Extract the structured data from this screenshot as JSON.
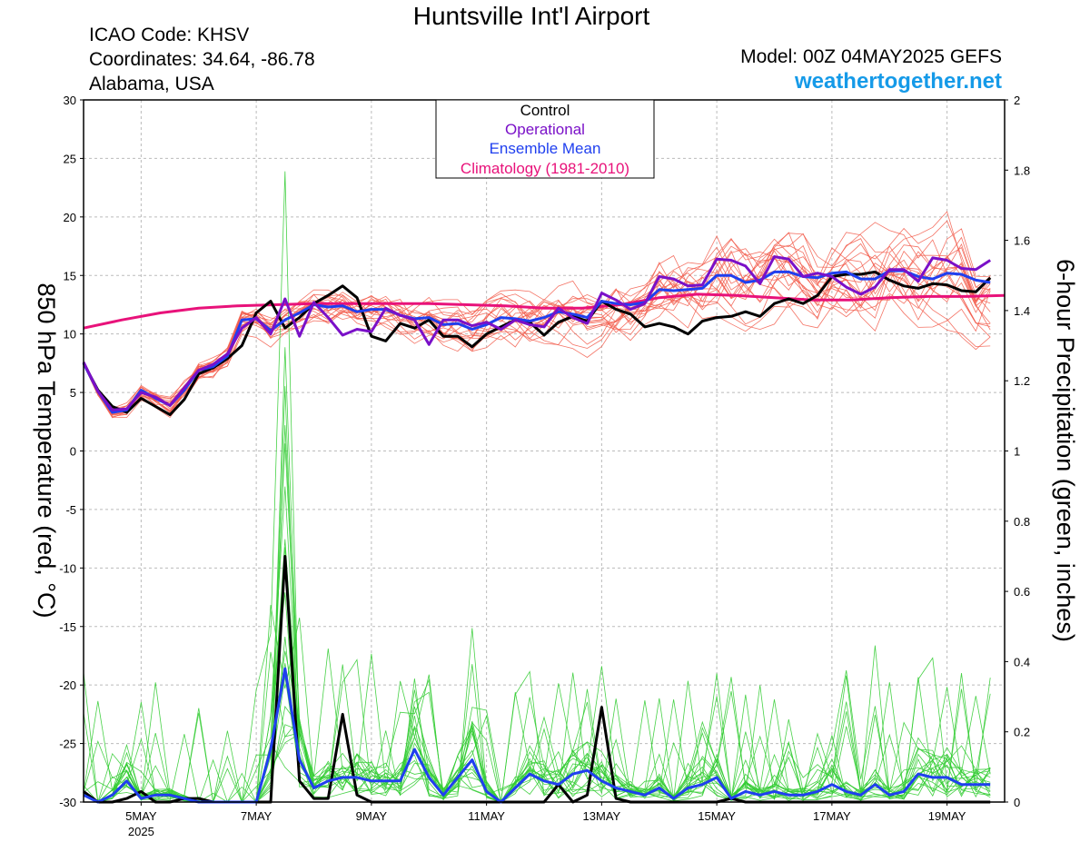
{
  "header": {
    "title": "Huntsville Int'l Airport",
    "icao": "ICAO Code: KHSV",
    "coordinates": "Coordinates: 34.64, -86.78",
    "region": "Alabama, USA",
    "model": "Model: 00Z 04MAY2025 GEFS",
    "site": "weathertogether.net"
  },
  "colors": {
    "member_temp": "#f25a4a",
    "member_precip": "#33cc33",
    "control": "#000000",
    "operational": "#7a10c8",
    "ensemble_mean": "#1f3fef",
    "climatology": "#e8127a",
    "site": "#159ae8"
  },
  "chart_data": {
    "type": "line",
    "ylabel_left": "850 hPa Temperature (red, °C)",
    "ylabel_right": "6-hour Precipitation (green, inches)",
    "ylim_left": [
      -30,
      30
    ],
    "ylim_right": [
      0,
      2
    ],
    "yticks_left": [
      "30",
      "25",
      "20",
      "15",
      "10",
      "5",
      "0",
      "-5",
      "-10",
      "-15",
      "-20",
      "-25",
      "-30"
    ],
    "yticks_right": [
      "2",
      "1.8",
      "1.6",
      "1.4",
      "1.2",
      "1",
      "0.8",
      "0.6",
      "0.4",
      "0.2",
      "0"
    ],
    "x_start": "04 May 2025 00Z",
    "x_step_hours": 6,
    "x_ticks": [
      {
        "label": "5MAY",
        "sub": "2025",
        "index": 4
      },
      {
        "label": "7MAY",
        "index": 12
      },
      {
        "label": "9MAY",
        "index": 20
      },
      {
        "label": "11MAY",
        "index": 28
      },
      {
        "label": "13MAY",
        "index": 36
      },
      {
        "label": "15MAY",
        "index": 44
      },
      {
        "label": "17MAY",
        "index": 52
      },
      {
        "label": "19MAY",
        "index": 60
      }
    ],
    "legend": [
      "Control",
      "Operational",
      "Ensemble Mean",
      "Climatology (1981-2010)"
    ],
    "series": [
      {
        "name": "Control",
        "axis": "temperature",
        "color": "#000000",
        "values": [
          7.5,
          5.2,
          3.8,
          3.3,
          4.5,
          3.8,
          3.1,
          4.4,
          6.6,
          7.1,
          7.9,
          9,
          11.8,
          12.8,
          10.5,
          11.4,
          12.6,
          13.3,
          14.1,
          13.1,
          9.8,
          9.4,
          10.9,
          10.5,
          11.2,
          9.8,
          9.8,
          8.9,
          10,
          10.6,
          11.2,
          11,
          9.9,
          11,
          11.5,
          11.1,
          12.8,
          12.1,
          11.7,
          10.6,
          10.9,
          10.6,
          10,
          11.1,
          11.4,
          11.5,
          11.9,
          11.5,
          12.6,
          13,
          12.6,
          13.3,
          14.9,
          15.1,
          15.1,
          15.3,
          14.6,
          14.1,
          13.9,
          14.3,
          14.2,
          13.7,
          13.6,
          14.8
        ]
      },
      {
        "name": "Operational",
        "axis": "temperature",
        "color": "#7a10c8",
        "values": [
          7.6,
          5.1,
          3.5,
          3.6,
          5,
          4.6,
          3.9,
          5.4,
          6.9,
          7.4,
          8.3,
          10.5,
          11.4,
          10,
          13,
          9.8,
          12.7,
          11.4,
          9.9,
          10.4,
          10.2,
          12.2,
          11.6,
          11.2,
          9.1,
          11.2,
          11.2,
          10.7,
          11,
          10.4,
          11.2,
          10.8,
          10.6,
          12.2,
          11.4,
          10.9,
          13.5,
          12.9,
          12.1,
          12.6,
          14.9,
          14.7,
          14.1,
          14.2,
          16.4,
          16.3,
          15.8,
          14.3,
          16.6,
          16.4,
          14.9,
          15.2,
          14.9,
          14,
          13.4,
          14,
          15.5,
          15.5,
          14.5,
          16.5,
          16.3,
          15.6,
          15.5,
          16.3
        ]
      },
      {
        "name": "Ensemble Mean",
        "axis": "temperature",
        "color": "#1f3fef",
        "values": [
          7.5,
          5.1,
          3.3,
          3.5,
          5.2,
          4.5,
          3.9,
          5.2,
          6.9,
          7.2,
          8.1,
          11.2,
          11.3,
          10.3,
          11.2,
          11.8,
          12.5,
          12.3,
          12.4,
          11.9,
          12.1,
          12.1,
          11.6,
          11.3,
          11.4,
          10.8,
          10.9,
          10.4,
          10.8,
          11.4,
          11.3,
          11.1,
          11.4,
          11.9,
          11.7,
          11.4,
          12.8,
          12.6,
          12.5,
          12.7,
          13.8,
          13.7,
          13.8,
          13.9,
          15,
          15,
          14.4,
          14.6,
          15.3,
          15.3,
          14.9,
          14.8,
          15.2,
          15.3,
          14.7,
          14.7,
          15.4,
          15.4,
          14.9,
          14.7,
          15.2,
          15.1,
          14.6,
          14.4
        ]
      },
      {
        "name": "Climatology (1981-2010)",
        "axis": "temperature",
        "color": "#e8127a",
        "values": [
          10.5,
          11.2,
          11.8,
          12.2,
          12.4,
          12.5,
          12.6,
          12.6,
          12.6,
          12.6,
          12.5,
          12.4,
          12.2,
          12.2,
          12.5,
          13.1,
          13.4,
          13.3,
          13.1,
          12.9,
          12.9,
          13.1,
          13.2,
          13.2,
          13.3
        ]
      },
      {
        "name": "Control",
        "axis": "precipitation",
        "color": "#000000",
        "values": [
          0.03,
          0,
          0,
          0.01,
          0.03,
          0,
          0,
          0.01,
          0.01,
          0,
          0,
          0,
          0,
          0,
          0.7,
          0.06,
          0.01,
          0.01,
          0.25,
          0.02,
          0,
          0,
          0,
          0,
          0,
          0,
          0,
          0,
          0,
          0,
          0,
          0,
          0,
          0.05,
          0,
          0.02,
          0.27,
          0.01,
          0,
          0,
          0,
          0,
          0,
          0,
          0,
          0.01,
          0,
          0,
          0,
          0,
          0,
          0,
          0,
          0,
          0,
          0,
          0,
          0,
          0,
          0,
          0,
          0,
          0,
          0
        ]
      },
      {
        "name": "Ensemble Mean",
        "axis": "precipitation",
        "color": "#1f3fef",
        "values": [
          0.02,
          0,
          0.02,
          0.06,
          0.01,
          0.02,
          0.02,
          0.01,
          0,
          0,
          0,
          0,
          0,
          0.15,
          0.38,
          0.12,
          0.04,
          0.06,
          0.07,
          0.07,
          0.06,
          0.06,
          0.06,
          0.15,
          0.07,
          0.02,
          0.07,
          0.12,
          0.03,
          0,
          0.04,
          0.08,
          0.06,
          0.05,
          0.08,
          0.09,
          0.06,
          0.04,
          0.03,
          0.02,
          0.04,
          0.01,
          0.04,
          0.05,
          0.07,
          0.01,
          0.03,
          0.02,
          0.03,
          0.02,
          0.02,
          0.03,
          0.05,
          0.03,
          0.02,
          0.05,
          0.02,
          0.03,
          0.08,
          0.07,
          0.07,
          0.05,
          0.05,
          0.05
        ]
      }
    ]
  }
}
